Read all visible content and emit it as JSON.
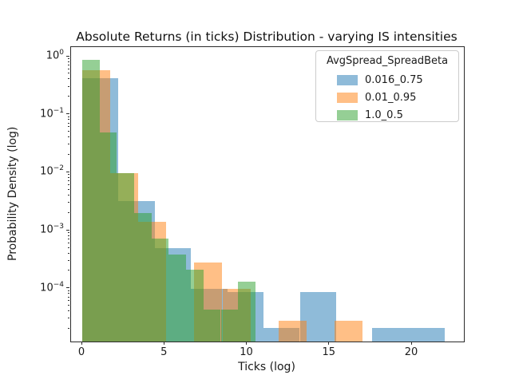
{
  "title": "Absolute Returns (in ticks) Distribution - varying IS intensities",
  "axes": {
    "xlabel": "Ticks (log)",
    "ylabel": "Probability Density (log)",
    "x_ticks": [
      0,
      5,
      10,
      15,
      20
    ],
    "y_tick_exponents": [
      0,
      -1,
      -2,
      -3,
      -4
    ]
  },
  "legend": {
    "title": "AvgSpread_SpreadBeta",
    "entries": [
      {
        "label": "0.016_0.75",
        "color": "#1f77b4"
      },
      {
        "label": "0.01_0.95",
        "color": "#ff7f0e"
      },
      {
        "label": "1.0_0.5",
        "color": "#2ca02c"
      }
    ]
  },
  "chart_data": {
    "type": "bar",
    "subtype": "overlapping-histograms",
    "title": "Absolute Returns (in ticks) Distribution - varying IS intensities",
    "xlabel": "Ticks (log)",
    "ylabel": "Probability Density (log)",
    "y_scale": "log",
    "alpha": 0.5,
    "xlim": [
      -0.68,
      23.15
    ],
    "ylim": [
      1.23e-05,
      1.46
    ],
    "legend_position": "upper right",
    "grid": false,
    "series": [
      {
        "name": "0.016_0.75",
        "color": "#1f77b4",
        "bin_start": 0,
        "bin_width": 2.2,
        "densities": [
          0.425,
          0.0032,
          0.0005,
          0.0001,
          8.9e-05,
          2.1e-05,
          8.9e-05,
          0,
          2.1e-05,
          2.1e-05
        ]
      },
      {
        "name": "0.01_0.95",
        "color": "#ff7f0e",
        "bin_start": 0,
        "bin_width": 1.7,
        "densities": [
          0.58,
          0.0099,
          0.00144,
          0,
          0.00028,
          9.8e-05,
          0,
          2.8e-05,
          0,
          2.8e-05
        ]
      },
      {
        "name": "1.0_0.5",
        "color": "#2ca02c",
        "bin_start": 0,
        "bin_width": 1.05,
        "densities": [
          0.88,
          0.049,
          0.0099,
          0.002,
          0.00073,
          0.00039,
          0.00021,
          4.4e-05,
          4.4e-05,
          0.000134
        ]
      }
    ]
  }
}
